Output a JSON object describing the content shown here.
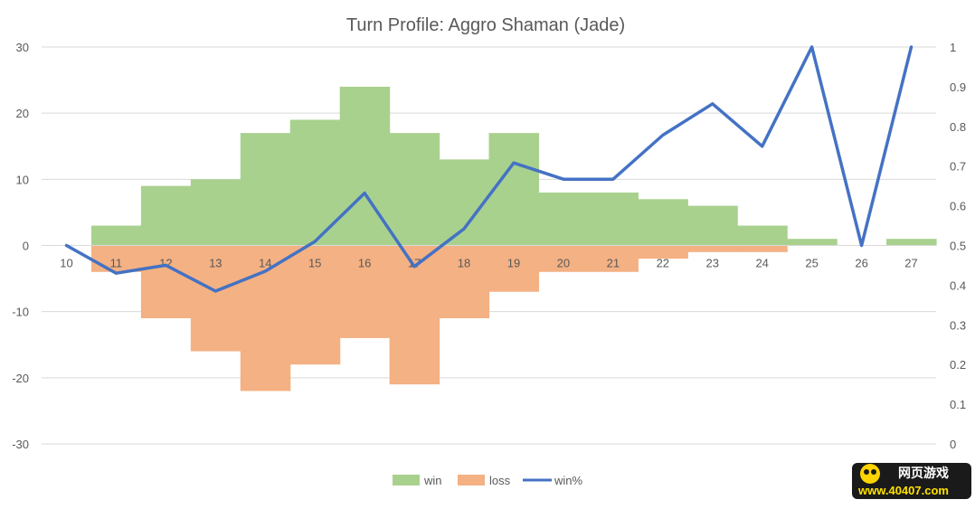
{
  "chart_data": {
    "type": "bar",
    "title": "Turn Profile: Aggro Shaman (Jade)",
    "categories": [
      "10",
      "11",
      "12",
      "13",
      "14",
      "15",
      "16",
      "17",
      "18",
      "19",
      "20",
      "21",
      "22",
      "23",
      "24",
      "25",
      "26",
      "27"
    ],
    "series": [
      {
        "name": "win",
        "axis": "left",
        "kind": "bar",
        "values": [
          0,
          3,
          9,
          10,
          17,
          19,
          24,
          17,
          13,
          17,
          8,
          8,
          7,
          6,
          3,
          1,
          0,
          1
        ]
      },
      {
        "name": "loss",
        "axis": "left",
        "kind": "bar",
        "values": [
          0,
          -4,
          -11,
          -16,
          -22,
          -18,
          -14,
          -21,
          -11,
          -7,
          -4,
          -4,
          -2,
          -1,
          -1,
          0,
          0,
          0
        ]
      },
      {
        "name": "win%",
        "axis": "right",
        "kind": "line",
        "values": [
          0.5,
          0.43,
          0.45,
          0.385,
          0.435,
          0.51,
          0.632,
          0.447,
          0.542,
          0.708,
          0.667,
          0.667,
          0.778,
          0.857,
          0.75,
          1.0,
          0.5,
          1.0
        ]
      }
    ],
    "yleft": {
      "ylim": [
        -30,
        30
      ],
      "ticks": [
        "30",
        "20",
        "10",
        "0",
        "-10",
        "-20",
        "-30"
      ]
    },
    "yright": {
      "ylim": [
        0,
        1
      ],
      "ticks": [
        "1",
        "0.9",
        "0.8",
        "0.7",
        "0.6",
        "0.5",
        "0.4",
        "0.3",
        "0.2",
        "0.1",
        "0"
      ]
    },
    "grid": true,
    "legend": "bottom",
    "colors": {
      "win": "#a9d18e",
      "loss": "#f4b183",
      "win%": "#4472c4",
      "grid": "#d9d9d9",
      "text": "#595959"
    }
  },
  "watermark": {
    "top_text": "网页游戏",
    "bottom_text": "www.40407.com"
  }
}
